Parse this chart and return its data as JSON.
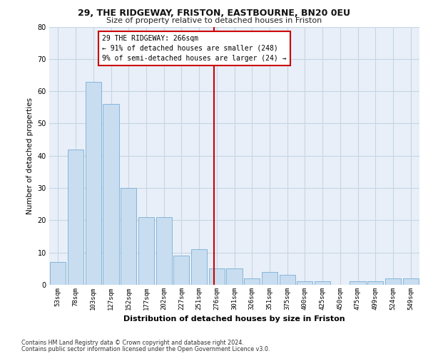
{
  "title1": "29, THE RIDGEWAY, FRISTON, EASTBOURNE, BN20 0EU",
  "title2": "Size of property relative to detached houses in Friston",
  "xlabel": "Distribution of detached houses by size in Friston",
  "ylabel": "Number of detached properties",
  "categories": [
    "53sqm",
    "78sqm",
    "103sqm",
    "127sqm",
    "152sqm",
    "177sqm",
    "202sqm",
    "227sqm",
    "251sqm",
    "276sqm",
    "301sqm",
    "326sqm",
    "351sqm",
    "375sqm",
    "400sqm",
    "425sqm",
    "450sqm",
    "475sqm",
    "499sqm",
    "524sqm",
    "549sqm"
  ],
  "values": [
    7,
    42,
    63,
    56,
    30,
    21,
    21,
    9,
    11,
    5,
    5,
    2,
    4,
    3,
    1,
    1,
    0,
    1,
    1,
    2,
    2
  ],
  "bar_color": "#c8ddf0",
  "bar_edge_color": "#7aadd4",
  "vline_x_index": 8.85,
  "vline_color": "#cc0000",
  "annotation_text": "29 THE RIDGEWAY: 266sqm\n← 91% of detached houses are smaller (248)\n9% of semi-detached houses are larger (24) →",
  "annotation_box_color": "#ffffff",
  "annotation_box_edge": "#cc0000",
  "ylim": [
    0,
    80
  ],
  "yticks": [
    0,
    10,
    20,
    30,
    40,
    50,
    60,
    70,
    80
  ],
  "grid_color": "#c5d5e5",
  "bg_color": "#e8eff8",
  "footer1": "Contains HM Land Registry data © Crown copyright and database right 2024.",
  "footer2": "Contains public sector information licensed under the Open Government Licence v3.0."
}
